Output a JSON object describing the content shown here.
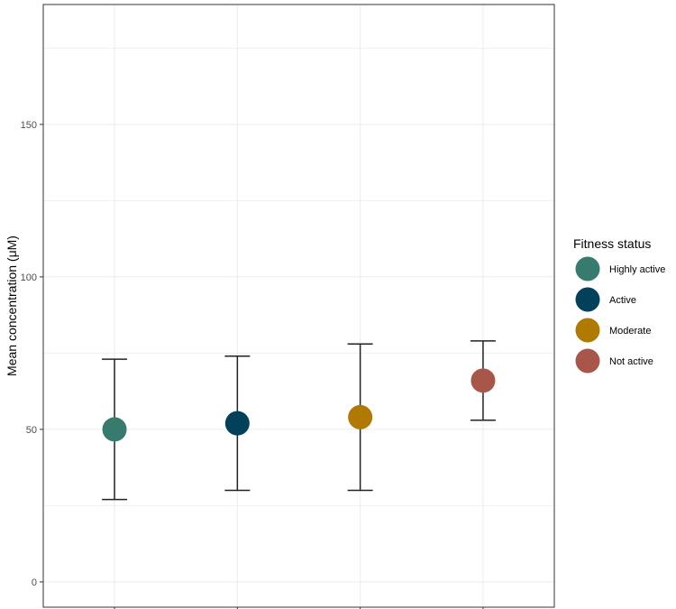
{
  "chart_data": {
    "type": "scatter",
    "title": "",
    "xlabel": "",
    "ylabel": "Mean concentration (μM)",
    "ylim": [
      -8.3,
      189.3
    ],
    "yticks": [
      0,
      50,
      100,
      150
    ],
    "grid": true,
    "categories": [
      "Highly active",
      "Active",
      "Moderate",
      "Not active"
    ],
    "values": [
      50,
      52,
      54,
      66
    ],
    "error_low": [
      27,
      30,
      30,
      53
    ],
    "error_high": [
      73,
      74,
      78,
      79
    ],
    "colors": [
      "#367b6e",
      "#03405a",
      "#b07a00",
      "#a8564a"
    ],
    "legend": {
      "title": "Fitness status",
      "placement": "right",
      "entries": [
        "Highly active",
        "Active",
        "Moderate",
        "Not active"
      ]
    }
  }
}
